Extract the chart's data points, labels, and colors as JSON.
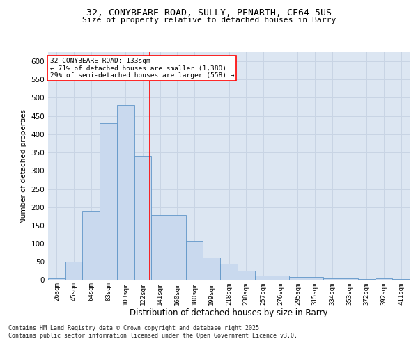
{
  "title_line1": "32, CONYBEARE ROAD, SULLY, PENARTH, CF64 5US",
  "title_line2": "Size of property relative to detached houses in Barry",
  "xlabel": "Distribution of detached houses by size in Barry",
  "ylabel": "Number of detached properties",
  "categories": [
    "26sqm",
    "45sqm",
    "64sqm",
    "83sqm",
    "103sqm",
    "122sqm",
    "141sqm",
    "160sqm",
    "180sqm",
    "199sqm",
    "218sqm",
    "238sqm",
    "257sqm",
    "276sqm",
    "295sqm",
    "315sqm",
    "334sqm",
    "353sqm",
    "372sqm",
    "392sqm",
    "411sqm"
  ],
  "values": [
    5,
    50,
    190,
    430,
    480,
    340,
    178,
    178,
    108,
    62,
    44,
    25,
    12,
    12,
    8,
    8,
    5,
    5,
    3,
    5,
    3
  ],
  "bar_color": "#c9d9ee",
  "bar_edge_color": "#6096c8",
  "grid_color": "#c8d4e4",
  "background_color": "#dce6f2",
  "plot_bg_color": "#dce6f2",
  "annotation_text": "32 CONYBEARE ROAD: 133sqm\n← 71% of detached houses are smaller (1,380)\n29% of semi-detached houses are larger (558) →",
  "vline_x_index": 5.42,
  "vline_color": "red",
  "ylim": [
    0,
    625
  ],
  "yticks": [
    0,
    50,
    100,
    150,
    200,
    250,
    300,
    350,
    400,
    450,
    500,
    550,
    600
  ],
  "footnote_line1": "Contains HM Land Registry data © Crown copyright and database right 2025.",
  "footnote_line2": "Contains public sector information licensed under the Open Government Licence v3.0.",
  "annotation_box_color": "white",
  "annotation_box_edge": "red"
}
